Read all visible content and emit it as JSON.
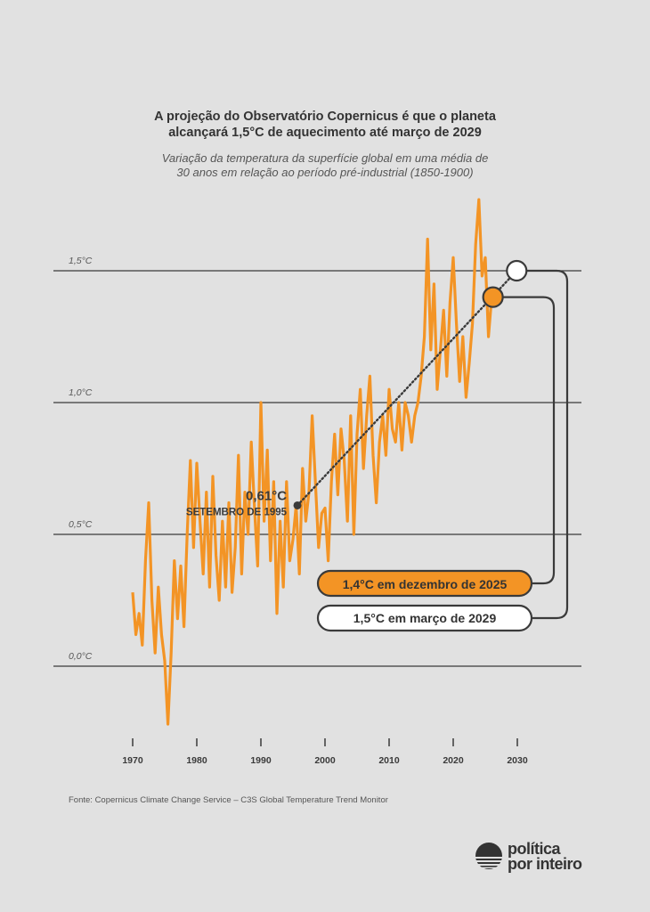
{
  "title_line1": "A projeção do Observatório Copernicus é que o planeta",
  "title_line2": "alcançará 1,5°C de aquecimento até março de 2029",
  "subtitle_line1": "Variação da temperatura da superfície global em uma média de",
  "subtitle_line2": "30 anos em relação ao período pré-industrial (1850-1900)",
  "source": "Fonte: Copernicus Climate Change Service – C3S Global Temperature Trend Monitor",
  "logo": {
    "line1": "política",
    "line2": "por inteiro"
  },
  "colors": {
    "background": "#e1e1e1",
    "series": "#f39425",
    "ink": "#3a3a3a"
  },
  "chart_data": {
    "type": "line",
    "xlim": [
      1968,
      2039
    ],
    "ylim": [
      -0.3,
      1.8
    ],
    "x_ticks": [
      1970,
      1980,
      1990,
      2000,
      2010,
      2020,
      2030
    ],
    "x_tick_labels": [
      "1970",
      "1980",
      "1990",
      "2000",
      "2010",
      "2020",
      "2030"
    ],
    "y_ticks": [
      0.0,
      0.5,
      1.0,
      1.5
    ],
    "y_tick_labels": [
      "0,0°C",
      "0,5°C",
      "1,0°C",
      "1,5°C"
    ],
    "grid": "horizontal",
    "series": [
      {
        "x_start": 1970,
        "x_step": 0.5,
        "values": [
          0.28,
          0.12,
          0.2,
          0.08,
          0.4,
          0.62,
          0.25,
          0.05,
          0.3,
          0.12,
          0.02,
          -0.22,
          0.05,
          0.4,
          0.18,
          0.38,
          0.15,
          0.5,
          0.78,
          0.45,
          0.77,
          0.55,
          0.35,
          0.66,
          0.3,
          0.72,
          0.42,
          0.25,
          0.55,
          0.3,
          0.62,
          0.28,
          0.45,
          0.8,
          0.35,
          0.66,
          0.5,
          0.85,
          0.6,
          0.38,
          1.0,
          0.55,
          0.82,
          0.4,
          0.7,
          0.2,
          0.55,
          0.3,
          0.7,
          0.4,
          0.48,
          0.61,
          0.35,
          0.75,
          0.55,
          0.66,
          0.95,
          0.7,
          0.45,
          0.58,
          0.6,
          0.4,
          0.7,
          0.88,
          0.65,
          0.9,
          0.78,
          0.55,
          0.95,
          0.5,
          0.88,
          1.05,
          0.75,
          0.95,
          1.1,
          0.8,
          0.62,
          0.85,
          0.95,
          0.8,
          1.05,
          0.9,
          0.85,
          1.0,
          0.82,
          1.0,
          0.95,
          0.85,
          0.95,
          1.0,
          1.1,
          1.25,
          1.62,
          1.2,
          1.45,
          1.05,
          1.2,
          1.35,
          1.1,
          1.38,
          1.55,
          1.3,
          1.08,
          1.25,
          1.02,
          1.15,
          1.3,
          1.6,
          1.77,
          1.48,
          1.55,
          1.25,
          1.4
        ]
      }
    ],
    "annotations": {
      "start_point": {
        "x": 1995.7,
        "y": 0.61,
        "value_label": "0,61°C",
        "date_label": "SETEMBRO DE 1995"
      },
      "current_point": {
        "x": 2026.2,
        "y": 1.4,
        "label": "1,4°C em dezembro de 2025"
      },
      "projection_point": {
        "x": 2029.9,
        "y": 1.5,
        "label": "1,5°C em março de 2029"
      }
    }
  }
}
